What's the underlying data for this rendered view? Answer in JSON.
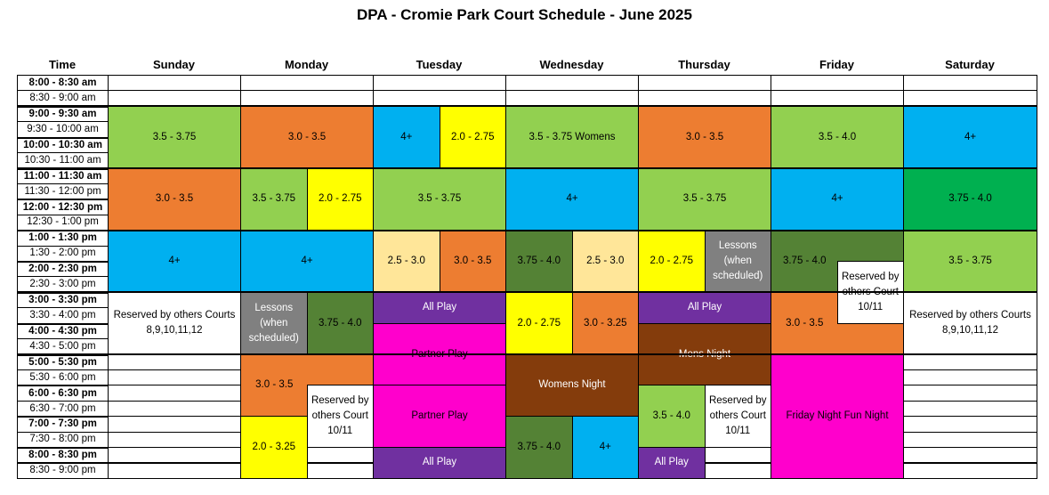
{
  "title": "DPA - Cromie Park Court Schedule - June 2025",
  "headers": [
    "Time",
    "Sunday",
    "Monday",
    "Tuesday",
    "Wednesday",
    "Thursday",
    "Friday",
    "Saturday"
  ],
  "times": [
    {
      "label": "8:00 - 8:30 am",
      "bold": true
    },
    {
      "label": "8:30 - 9:00 am",
      "bold": false
    },
    {
      "label": "9:00 - 9:30 am",
      "bold": true
    },
    {
      "label": "9:30 - 10:00 am",
      "bold": false
    },
    {
      "label": "10:00 - 10:30 am",
      "bold": true
    },
    {
      "label": "10:30 - 11:00 am",
      "bold": false
    },
    {
      "label": "11:00 - 11:30 am",
      "bold": true
    },
    {
      "label": "11:30 - 12:00 pm",
      "bold": false
    },
    {
      "label": "12:00 - 12:30 pm",
      "bold": true
    },
    {
      "label": "12:30 - 1:00 pm",
      "bold": false
    },
    {
      "label": "1:00 - 1:30 pm",
      "bold": true
    },
    {
      "label": "1:30 - 2:00 pm",
      "bold": false
    },
    {
      "label": "2:00 - 2:30 pm",
      "bold": true
    },
    {
      "label": "2:30 - 3:00 pm",
      "bold": false
    },
    {
      "label": "3:00 - 3:30 pm",
      "bold": true
    },
    {
      "label": "3:30 - 4:00 pm",
      "bold": false
    },
    {
      "label": "4:00 - 4:30 pm",
      "bold": true
    },
    {
      "label": "4:30 - 5:00 pm",
      "bold": false
    },
    {
      "label": "5:00 - 5:30 pm",
      "bold": true
    },
    {
      "label": "5:30 - 6:00 pm",
      "bold": false
    },
    {
      "label": "6:00 - 6:30 pm",
      "bold": true
    },
    {
      "label": "6:30 - 7:00 pm",
      "bold": false
    },
    {
      "label": "7:00 - 7:30 pm",
      "bold": true
    },
    {
      "label": "7:30 - 8:00 pm",
      "bold": false
    },
    {
      "label": "8:00 - 8:30 pm",
      "bold": true
    },
    {
      "label": "8:30 - 9:00 pm",
      "bold": false
    }
  ],
  "colors": {
    "lightgreen": "#92d050",
    "orange": "#ed7d31",
    "blue": "#00b0f0",
    "yellow": "#ffff00",
    "green": "#00b050",
    "peach": "#ffe699",
    "darkgreen": "#548235",
    "gray": "#808080",
    "purple": "#7030a0",
    "magenta": "#ff00cc",
    "brown": "#843c0c",
    "white": "#ffffff"
  },
  "blocks": [
    {
      "day": 1,
      "sub": [
        0,
        1
      ],
      "start": 2,
      "end": 6,
      "color": "lightgreen",
      "text": "3.5 - 3.75"
    },
    {
      "day": 1,
      "sub": [
        0,
        1
      ],
      "start": 6,
      "end": 10,
      "color": "orange",
      "text": "3.0 - 3.5"
    },
    {
      "day": 1,
      "sub": [
        0,
        1
      ],
      "start": 10,
      "end": 14,
      "color": "blue",
      "text": "4+"
    },
    {
      "day": 1,
      "sub": [
        0,
        1
      ],
      "start": 14,
      "end": 18,
      "color": "white",
      "text": "Reserved by others Courts 8,9,10,11,12"
    },
    {
      "day": 2,
      "sub": [
        0,
        1
      ],
      "start": 2,
      "end": 6,
      "color": "orange",
      "text": "3.0 - 3.5"
    },
    {
      "day": 2,
      "sub": [
        0,
        0.5
      ],
      "start": 6,
      "end": 10,
      "color": "lightgreen",
      "text": "3.5 - 3.75"
    },
    {
      "day": 2,
      "sub": [
        0.5,
        1
      ],
      "start": 6,
      "end": 10,
      "color": "yellow",
      "text": "2.0 - 2.75"
    },
    {
      "day": 2,
      "sub": [
        0,
        1
      ],
      "start": 10,
      "end": 14,
      "color": "blue",
      "text": "4+"
    },
    {
      "day": 2,
      "sub": [
        0,
        0.5
      ],
      "start": 14,
      "end": 18,
      "color": "gray",
      "text": "Lessons (when scheduled)"
    },
    {
      "day": 2,
      "sub": [
        0.5,
        1
      ],
      "start": 14,
      "end": 18,
      "color": "darkgreen",
      "text": "3.75 - 4.0"
    },
    {
      "day": 2,
      "sub": [
        0,
        1
      ],
      "start": 18,
      "end": 22,
      "color": "orange",
      "text": "3.0 - 3.5",
      "textSub": [
        0,
        0.5
      ]
    },
    {
      "day": 2,
      "sub": [
        0.5,
        1
      ],
      "start": 20,
      "end": 24,
      "color": "white",
      "text": "Reserved by others Court 10/11"
    },
    {
      "day": 2,
      "sub": [
        0,
        0.5
      ],
      "start": 22,
      "end": 26,
      "color": "yellow",
      "text": "2.0 - 3.25"
    },
    {
      "day": 3,
      "sub": [
        0,
        0.5
      ],
      "start": 2,
      "end": 6,
      "color": "blue",
      "text": "4+"
    },
    {
      "day": 3,
      "sub": [
        0.5,
        1
      ],
      "start": 2,
      "end": 6,
      "color": "yellow",
      "text": "2.0 - 2.75"
    },
    {
      "day": 3,
      "sub": [
        0,
        1
      ],
      "start": 6,
      "end": 10,
      "color": "lightgreen",
      "text": "3.5 - 3.75"
    },
    {
      "day": 3,
      "sub": [
        0,
        0.5
      ],
      "start": 10,
      "end": 14,
      "color": "peach",
      "text": "2.5 - 3.0"
    },
    {
      "day": 3,
      "sub": [
        0.5,
        1
      ],
      "start": 10,
      "end": 14,
      "color": "orange",
      "text": "3.0 - 3.5"
    },
    {
      "day": 3,
      "sub": [
        0,
        1
      ],
      "start": 14,
      "end": 16,
      "color": "purple",
      "text": "All Play",
      "white": true
    },
    {
      "day": 3,
      "sub": [
        0,
        1
      ],
      "start": 16,
      "end": 20,
      "color": "magenta",
      "text": "Partner Play"
    },
    {
      "day": 3,
      "sub": [
        0,
        1
      ],
      "start": 20,
      "end": 24,
      "color": "magenta",
      "text": "Partner Play"
    },
    {
      "day": 3,
      "sub": [
        0,
        1
      ],
      "start": 24,
      "end": 26,
      "color": "purple",
      "text": "All Play",
      "white": true
    },
    {
      "day": 4,
      "sub": [
        0,
        1
      ],
      "start": 2,
      "end": 6,
      "color": "lightgreen",
      "text": "3.5 - 3.75 Womens"
    },
    {
      "day": 4,
      "sub": [
        0,
        1
      ],
      "start": 6,
      "end": 10,
      "color": "blue",
      "text": "4+"
    },
    {
      "day": 4,
      "sub": [
        0,
        0.5
      ],
      "start": 10,
      "end": 14,
      "color": "darkgreen",
      "text": "3.75 - 4.0"
    },
    {
      "day": 4,
      "sub": [
        0.5,
        1
      ],
      "start": 10,
      "end": 14,
      "color": "peach",
      "text": "2.5 - 3.0"
    },
    {
      "day": 4,
      "sub": [
        0,
        0.5
      ],
      "start": 14,
      "end": 18,
      "color": "yellow",
      "text": "2.0 - 2.75"
    },
    {
      "day": 4,
      "sub": [
        0.5,
        1
      ],
      "start": 14,
      "end": 18,
      "color": "orange",
      "text": "3.0 - 3.25"
    },
    {
      "day": 4,
      "sub": [
        0,
        1
      ],
      "start": 18,
      "end": 22,
      "color": "brown",
      "text": "Womens Night"
    },
    {
      "day": 4,
      "sub": [
        0,
        0.5
      ],
      "start": 22,
      "end": 26,
      "color": "darkgreen",
      "text": "3.75 - 4.0"
    },
    {
      "day": 4,
      "sub": [
        0.5,
        1
      ],
      "start": 22,
      "end": 26,
      "color": "blue",
      "text": "4+"
    },
    {
      "day": 5,
      "sub": [
        0,
        1
      ],
      "start": 2,
      "end": 6,
      "color": "orange",
      "text": "3.0 - 3.5"
    },
    {
      "day": 5,
      "sub": [
        0,
        1
      ],
      "start": 6,
      "end": 10,
      "color": "lightgreen",
      "text": "3.5 - 3.75"
    },
    {
      "day": 5,
      "sub": [
        0,
        0.5
      ],
      "start": 10,
      "end": 14,
      "color": "yellow",
      "text": "2.0 - 2.75"
    },
    {
      "day": 5,
      "sub": [
        0.5,
        1
      ],
      "start": 10,
      "end": 14,
      "color": "gray",
      "text": "Lessons (when scheduled)"
    },
    {
      "day": 5,
      "sub": [
        0,
        1
      ],
      "start": 14,
      "end": 16,
      "color": "purple",
      "text": "All Play",
      "white": true
    },
    {
      "day": 5,
      "sub": [
        0,
        1
      ],
      "start": 16,
      "end": 20,
      "color": "brown",
      "text": "Mens Night"
    },
    {
      "day": 5,
      "sub": [
        0,
        0.5
      ],
      "start": 20,
      "end": 24,
      "color": "lightgreen",
      "text": "3.5 - 4.0"
    },
    {
      "day": 5,
      "sub": [
        0.5,
        1
      ],
      "start": 20,
      "end": 24,
      "color": "white",
      "text": "Reserved by others Court 10/11"
    },
    {
      "day": 5,
      "sub": [
        0,
        0.5
      ],
      "start": 24,
      "end": 26,
      "color": "purple",
      "text": "All Play",
      "white": true
    },
    {
      "day": 6,
      "sub": [
        0,
        1
      ],
      "start": 2,
      "end": 6,
      "color": "lightgreen",
      "text": "3.5 - 4.0"
    },
    {
      "day": 6,
      "sub": [
        0,
        1
      ],
      "start": 6,
      "end": 10,
      "color": "blue",
      "text": "4+"
    },
    {
      "day": 6,
      "sub": [
        0,
        1
      ],
      "start": 10,
      "end": 14,
      "color": "darkgreen",
      "text": "3.75 - 4.0",
      "textSub": [
        0,
        0.5
      ],
      "textTop": true
    },
    {
      "day": 6,
      "sub": [
        0,
        1
      ],
      "start": 14,
      "end": 18,
      "color": "orange",
      "text": "3.0 - 3.5",
      "textSub": [
        0,
        0.5
      ]
    },
    {
      "day": 6,
      "sub": [
        0.5,
        1
      ],
      "start": 12,
      "end": 16,
      "color": "white",
      "text": "Reserved by others Court 10/11"
    },
    {
      "day": 6,
      "sub": [
        0,
        1
      ],
      "start": 18,
      "end": 26,
      "color": "magenta",
      "text": "Friday Night Fun Night"
    },
    {
      "day": 7,
      "sub": [
        0,
        1
      ],
      "start": 2,
      "end": 6,
      "color": "blue",
      "text": "4+"
    },
    {
      "day": 7,
      "sub": [
        0,
        1
      ],
      "start": 6,
      "end": 10,
      "color": "green",
      "text": "3.75 - 4.0"
    },
    {
      "day": 7,
      "sub": [
        0,
        1
      ],
      "start": 10,
      "end": 14,
      "color": "lightgreen",
      "text": "3.5 - 3.75"
    },
    {
      "day": 7,
      "sub": [
        0,
        1
      ],
      "start": 14,
      "end": 18,
      "color": "white",
      "text": "Reserved by others Courts 8,9,10,11,12"
    }
  ]
}
